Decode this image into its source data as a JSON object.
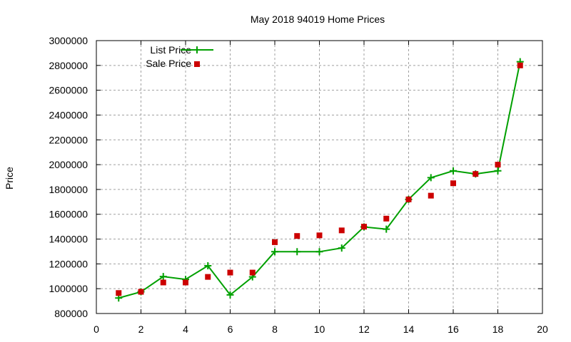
{
  "chart_data": {
    "type": "line",
    "title": "May 2018 94019 Home Prices",
    "xlabel": "",
    "ylabel": "Price",
    "xlim": [
      0,
      20
    ],
    "ylim": [
      800000,
      3000000
    ],
    "xticks": [
      0,
      2,
      4,
      6,
      8,
      10,
      12,
      14,
      16,
      18,
      20
    ],
    "yticks": [
      800000,
      1000000,
      1200000,
      1400000,
      1600000,
      1800000,
      2000000,
      2200000,
      2400000,
      2600000,
      2800000,
      3000000
    ],
    "grid": true,
    "legend_position": "top-left",
    "x": [
      1,
      2,
      3,
      4,
      5,
      6,
      7,
      8,
      9,
      10,
      11,
      12,
      13,
      14,
      15,
      16,
      17,
      18,
      19
    ],
    "series": [
      {
        "name": "List Price",
        "style": "linespoints",
        "color": "#00a000",
        "values": [
          925000,
          975000,
          1098000,
          1075000,
          1185000,
          950000,
          1095000,
          1298000,
          1298000,
          1298000,
          1328000,
          1498000,
          1480000,
          1720000,
          1895000,
          1950000,
          1925000,
          1950000,
          2830000
        ]
      },
      {
        "name": "Sale Price",
        "style": "points",
        "color": "#cc0000",
        "values": [
          965000,
          975000,
          1050000,
          1050000,
          1095000,
          1130000,
          1130000,
          1375000,
          1425000,
          1430000,
          1470000,
          1500000,
          1565000,
          1720000,
          1750000,
          1850000,
          1925000,
          2000000,
          2800000
        ]
      }
    ]
  }
}
